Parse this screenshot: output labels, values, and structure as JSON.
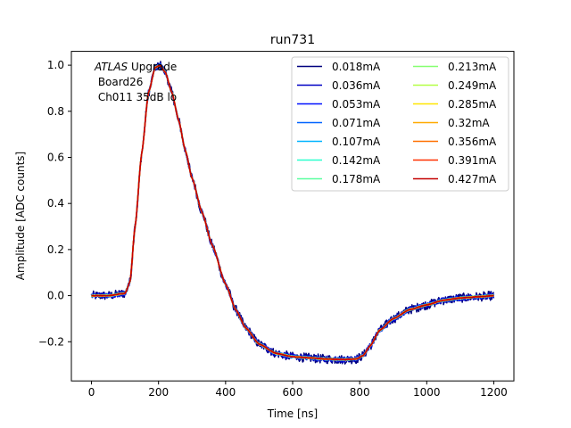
{
  "chart_data": {
    "type": "line",
    "title": "run731",
    "xlabel": "Time [ns]",
    "ylabel": "Amplitude [ADC counts]",
    "xlim": [
      -60,
      1260
    ],
    "ylim": [
      -0.37,
      1.06
    ],
    "xticks": [
      0,
      200,
      400,
      600,
      800,
      1000,
      1200
    ],
    "yticks": [
      -0.2,
      0.0,
      0.2,
      0.4,
      0.6,
      0.8,
      1.0
    ],
    "xtick_labels": [
      "0",
      "200",
      "400",
      "600",
      "800",
      "1000",
      "1200"
    ],
    "ytick_labels": [
      "−0.2",
      "0.0",
      "0.2",
      "0.4",
      "0.6",
      "0.8",
      "1.0"
    ],
    "grid": false,
    "legend_position": "top-right",
    "legend_columns": 2,
    "annotation": {
      "line1_italic": "ATLAS",
      "line1_rest": " Upgrade",
      "line2": " Board26",
      "line3": " Ch011 35dB lo"
    },
    "x": [
      0,
      50,
      100,
      115,
      130,
      150,
      170,
      190,
      205,
      220,
      240,
      260,
      280,
      300,
      330,
      360,
      400,
      430,
      460,
      500,
      550,
      600,
      650,
      700,
      750,
      790,
      810,
      830,
      860,
      900,
      950,
      1000,
      1050,
      1100,
      1150,
      1200
    ],
    "series": [
      {
        "name": "0.018mA",
        "color": "#00007f",
        "noise": 0.02,
        "values": [
          0.0,
          0.0,
          0.01,
          0.06,
          0.3,
          0.62,
          0.88,
          0.99,
          1.0,
          0.97,
          0.88,
          0.76,
          0.63,
          0.51,
          0.36,
          0.22,
          0.05,
          -0.06,
          -0.14,
          -0.21,
          -0.25,
          -0.265,
          -0.27,
          -0.275,
          -0.277,
          -0.275,
          -0.26,
          -0.22,
          -0.15,
          -0.1,
          -0.06,
          -0.04,
          -0.02,
          -0.01,
          -0.005,
          0.0
        ]
      },
      {
        "name": "0.036mA",
        "color": "#0000c4",
        "noise": 0.013,
        "values": [
          0.0,
          0.0,
          0.01,
          0.06,
          0.3,
          0.62,
          0.88,
          0.99,
          1.0,
          0.97,
          0.88,
          0.76,
          0.63,
          0.51,
          0.36,
          0.22,
          0.05,
          -0.06,
          -0.14,
          -0.21,
          -0.25,
          -0.265,
          -0.27,
          -0.275,
          -0.277,
          -0.275,
          -0.26,
          -0.22,
          -0.15,
          -0.1,
          -0.06,
          -0.04,
          -0.02,
          -0.01,
          -0.005,
          0.0
        ]
      },
      {
        "name": "0.053mA",
        "color": "#0010ff",
        "noise": 0.009,
        "values": [
          0.0,
          0.0,
          0.01,
          0.06,
          0.3,
          0.62,
          0.88,
          0.99,
          1.0,
          0.97,
          0.88,
          0.76,
          0.63,
          0.51,
          0.36,
          0.22,
          0.05,
          -0.06,
          -0.14,
          -0.21,
          -0.25,
          -0.265,
          -0.27,
          -0.275,
          -0.277,
          -0.275,
          -0.26,
          -0.22,
          -0.15,
          -0.1,
          -0.06,
          -0.04,
          -0.02,
          -0.01,
          -0.005,
          0.0
        ]
      },
      {
        "name": "0.071mA",
        "color": "#0064ff",
        "noise": 0.006,
        "values": [
          0.0,
          0.0,
          0.01,
          0.06,
          0.3,
          0.62,
          0.88,
          0.99,
          1.0,
          0.97,
          0.88,
          0.76,
          0.63,
          0.51,
          0.36,
          0.22,
          0.05,
          -0.06,
          -0.14,
          -0.21,
          -0.25,
          -0.265,
          -0.27,
          -0.275,
          -0.277,
          -0.275,
          -0.26,
          -0.22,
          -0.15,
          -0.1,
          -0.06,
          -0.04,
          -0.02,
          -0.01,
          -0.005,
          0.0
        ]
      },
      {
        "name": "0.107mA",
        "color": "#00b4ff",
        "noise": 0.005,
        "values": [
          0.0,
          0.0,
          0.01,
          0.06,
          0.3,
          0.62,
          0.88,
          0.99,
          1.0,
          0.97,
          0.88,
          0.76,
          0.63,
          0.51,
          0.36,
          0.22,
          0.05,
          -0.06,
          -0.14,
          -0.21,
          -0.25,
          -0.265,
          -0.27,
          -0.275,
          -0.277,
          -0.275,
          -0.26,
          -0.22,
          -0.15,
          -0.1,
          -0.06,
          -0.04,
          -0.02,
          -0.01,
          -0.005,
          0.0
        ]
      },
      {
        "name": "0.142mA",
        "color": "#2bffce",
        "noise": 0.004,
        "values": [
          0.0,
          0.0,
          0.01,
          0.06,
          0.3,
          0.62,
          0.88,
          0.99,
          1.0,
          0.97,
          0.88,
          0.76,
          0.63,
          0.51,
          0.36,
          0.22,
          0.05,
          -0.06,
          -0.14,
          -0.21,
          -0.25,
          -0.265,
          -0.27,
          -0.275,
          -0.277,
          -0.275,
          -0.26,
          -0.22,
          -0.15,
          -0.1,
          -0.06,
          -0.04,
          -0.02,
          -0.01,
          -0.005,
          0.0
        ]
      },
      {
        "name": "0.178mA",
        "color": "#5affa0",
        "noise": 0.004,
        "values": [
          0.0,
          0.0,
          0.01,
          0.06,
          0.3,
          0.62,
          0.88,
          0.99,
          1.0,
          0.97,
          0.88,
          0.76,
          0.63,
          0.51,
          0.36,
          0.22,
          0.05,
          -0.06,
          -0.14,
          -0.21,
          -0.25,
          -0.265,
          -0.27,
          -0.275,
          -0.277,
          -0.275,
          -0.26,
          -0.22,
          -0.15,
          -0.1,
          -0.06,
          -0.04,
          -0.02,
          -0.01,
          -0.005,
          0.0
        ]
      },
      {
        "name": "0.213mA",
        "color": "#86ff71",
        "noise": 0.003,
        "values": [
          0.0,
          0.0,
          0.01,
          0.06,
          0.3,
          0.62,
          0.88,
          0.99,
          1.0,
          0.97,
          0.88,
          0.76,
          0.63,
          0.51,
          0.36,
          0.22,
          0.05,
          -0.06,
          -0.14,
          -0.21,
          -0.25,
          -0.265,
          -0.27,
          -0.275,
          -0.277,
          -0.275,
          -0.26,
          -0.22,
          -0.15,
          -0.1,
          -0.06,
          -0.04,
          -0.02,
          -0.01,
          -0.005,
          0.0
        ]
      },
      {
        "name": "0.249mA",
        "color": "#b4ff43",
        "noise": 0.003,
        "values": [
          0.0,
          0.0,
          0.01,
          0.06,
          0.3,
          0.62,
          0.88,
          0.99,
          1.0,
          0.97,
          0.88,
          0.76,
          0.63,
          0.51,
          0.36,
          0.22,
          0.05,
          -0.06,
          -0.14,
          -0.21,
          -0.25,
          -0.265,
          -0.27,
          -0.275,
          -0.277,
          -0.275,
          -0.26,
          -0.22,
          -0.15,
          -0.1,
          -0.06,
          -0.04,
          -0.02,
          -0.01,
          -0.005,
          0.0
        ]
      },
      {
        "name": "0.285mA",
        "color": "#ffe600",
        "noise": 0.003,
        "values": [
          0.0,
          0.0,
          0.01,
          0.06,
          0.3,
          0.62,
          0.88,
          0.99,
          1.0,
          0.97,
          0.88,
          0.76,
          0.63,
          0.51,
          0.36,
          0.22,
          0.05,
          -0.06,
          -0.14,
          -0.21,
          -0.25,
          -0.265,
          -0.27,
          -0.275,
          -0.277,
          -0.275,
          -0.26,
          -0.22,
          -0.15,
          -0.1,
          -0.06,
          -0.04,
          -0.02,
          -0.01,
          -0.005,
          0.0
        ]
      },
      {
        "name": "0.32mA",
        "color": "#ffaa00",
        "noise": 0.002,
        "values": [
          0.0,
          0.0,
          0.01,
          0.06,
          0.3,
          0.62,
          0.88,
          0.99,
          1.0,
          0.97,
          0.88,
          0.76,
          0.63,
          0.51,
          0.36,
          0.22,
          0.05,
          -0.06,
          -0.14,
          -0.21,
          -0.25,
          -0.265,
          -0.27,
          -0.275,
          -0.277,
          -0.275,
          -0.26,
          -0.22,
          -0.15,
          -0.1,
          -0.06,
          -0.04,
          -0.02,
          -0.01,
          -0.005,
          0.0
        ]
      },
      {
        "name": "0.356mA",
        "color": "#ff7000",
        "noise": 0.002,
        "values": [
          0.0,
          0.0,
          0.01,
          0.06,
          0.3,
          0.62,
          0.88,
          0.99,
          1.0,
          0.97,
          0.88,
          0.76,
          0.63,
          0.51,
          0.36,
          0.22,
          0.05,
          -0.06,
          -0.14,
          -0.21,
          -0.25,
          -0.265,
          -0.27,
          -0.275,
          -0.277,
          -0.275,
          -0.26,
          -0.22,
          -0.15,
          -0.1,
          -0.06,
          -0.04,
          -0.02,
          -0.01,
          -0.005,
          0.0
        ]
      },
      {
        "name": "0.391mA",
        "color": "#ff3000",
        "noise": 0.002,
        "values": [
          0.0,
          0.0,
          0.01,
          0.06,
          0.3,
          0.62,
          0.88,
          0.99,
          1.0,
          0.97,
          0.88,
          0.76,
          0.63,
          0.51,
          0.36,
          0.22,
          0.05,
          -0.06,
          -0.14,
          -0.21,
          -0.25,
          -0.265,
          -0.27,
          -0.275,
          -0.277,
          -0.275,
          -0.26,
          -0.22,
          -0.15,
          -0.1,
          -0.06,
          -0.04,
          -0.02,
          -0.01,
          -0.005,
          0.0
        ]
      },
      {
        "name": "0.427mA",
        "color": "#c40000",
        "noise": 0.001,
        "values": [
          0.0,
          0.0,
          0.01,
          0.06,
          0.3,
          0.62,
          0.88,
          0.99,
          1.0,
          0.97,
          0.88,
          0.76,
          0.63,
          0.51,
          0.36,
          0.22,
          0.05,
          -0.06,
          -0.14,
          -0.21,
          -0.25,
          -0.265,
          -0.27,
          -0.275,
          -0.277,
          -0.275,
          -0.26,
          -0.22,
          -0.15,
          -0.1,
          -0.06,
          -0.04,
          -0.02,
          -0.01,
          -0.005,
          0.0
        ]
      }
    ]
  }
}
